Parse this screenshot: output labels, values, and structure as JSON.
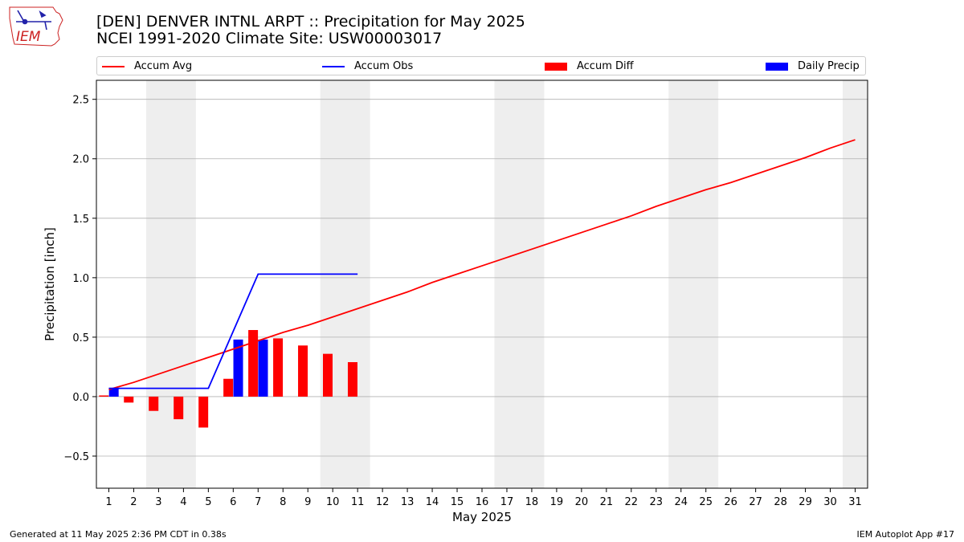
{
  "header": {
    "title_line1": "[DEN] DENVER INTNL ARPT :: Precipitation for May 2025",
    "title_line2": "NCEI 1991-2020 Climate Site: USW00003017"
  },
  "logo": {
    "text": "IEM"
  },
  "footer": {
    "generated": "Generated at 11 May 2025 2:36 PM CDT in 0.38s",
    "app": "IEM Autoplot App #17"
  },
  "colors": {
    "avg": "#ff0000",
    "obs": "#0000ff",
    "diff": "#ff0000",
    "daily": "#0000ff",
    "weekend": "#eeeeee",
    "grid": "#b0b0b0"
  },
  "chart_data": {
    "type": "bar",
    "xlabel": "May 2025",
    "ylabel": "Precipitation [inch]",
    "xlim": [
      0.5,
      31.5
    ],
    "ylim": [
      -0.77,
      2.66
    ],
    "yticks": [
      -0.5,
      0.0,
      0.5,
      1.0,
      1.5,
      2.0,
      2.5
    ],
    "ytick_labels": [
      "−0.5",
      "0.0",
      "0.5",
      "1.0",
      "1.5",
      "2.0",
      "2.5"
    ],
    "days": [
      1,
      2,
      3,
      4,
      5,
      6,
      7,
      8,
      9,
      10,
      11,
      12,
      13,
      14,
      15,
      16,
      17,
      18,
      19,
      20,
      21,
      22,
      23,
      24,
      25,
      26,
      27,
      28,
      29,
      30,
      31
    ],
    "weekend_spans": [
      [
        2.5,
        4.5
      ],
      [
        9.5,
        11.5
      ],
      [
        16.5,
        18.5
      ],
      [
        23.5,
        25.5
      ],
      [
        30.5,
        31.5
      ]
    ],
    "legend": [
      "Accum Avg",
      "Accum Obs",
      "Accum Diff",
      "Daily Precip"
    ],
    "series": [
      {
        "name": "Accum Avg",
        "kind": "line",
        "values": [
          0.06,
          0.12,
          0.19,
          0.26,
          0.33,
          0.4,
          0.47,
          0.54,
          0.6,
          0.67,
          0.74,
          0.81,
          0.88,
          0.96,
          1.03,
          1.1,
          1.17,
          1.24,
          1.31,
          1.38,
          1.45,
          1.52,
          1.6,
          1.67,
          1.74,
          1.8,
          1.87,
          1.94,
          2.01,
          2.09,
          2.16
        ]
      },
      {
        "name": "Accum Obs",
        "kind": "line",
        "values": [
          0.07,
          0.07,
          0.07,
          0.07,
          0.07,
          0.55,
          1.03,
          1.03,
          1.03,
          1.03,
          1.03
        ]
      },
      {
        "name": "Accum Diff",
        "kind": "bar",
        "values": [
          0.01,
          -0.05,
          -0.12,
          -0.19,
          -0.26,
          0.15,
          0.56,
          0.49,
          0.43,
          0.36,
          0.29
        ]
      },
      {
        "name": "Daily Precip",
        "kind": "bar",
        "values": [
          0.07,
          0.0,
          0.0,
          0.0,
          0.0,
          0.48,
          0.48,
          0.0,
          0.0,
          0.0,
          0.0
        ]
      }
    ]
  }
}
